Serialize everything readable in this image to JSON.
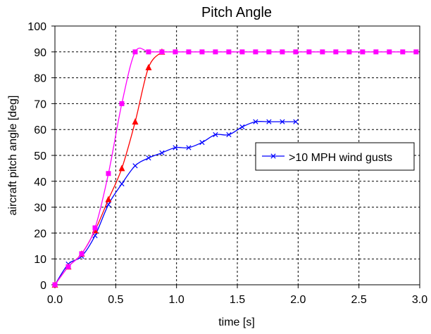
{
  "chart_data": {
    "type": "line",
    "title": "Pitch Angle",
    "xlabel": "time [s]",
    "ylabel": "aircraft pitch angle [deg]",
    "xlim": [
      0,
      3
    ],
    "ylim": [
      0,
      100
    ],
    "x_ticks": [
      "0.0",
      "0.5",
      "1.0",
      "1.5",
      "2.0",
      "2.5",
      "3.0"
    ],
    "x_tick_values": [
      0,
      0.5,
      1,
      1.5,
      2,
      2.5,
      3
    ],
    "y_ticks": [
      "0",
      "10",
      "20",
      "30",
      "40",
      "50",
      "60",
      "70",
      "80",
      "90",
      "100"
    ],
    "y_tick_values": [
      0,
      10,
      20,
      30,
      40,
      50,
      60,
      70,
      80,
      90,
      100
    ],
    "grid": true,
    "legend_position": "right, middle",
    "series": [
      {
        "color": "#ff00ff",
        "marker": "square",
        "x": [
          0,
          0.11,
          0.22,
          0.33,
          0.44,
          0.55,
          0.66,
          0.77,
          0.88,
          0.99,
          1.1,
          1.21,
          1.32,
          1.43,
          1.54,
          1.65,
          1.76,
          1.87,
          1.98,
          2.09,
          2.2,
          2.31,
          2.42,
          2.53,
          2.64,
          2.75,
          2.86,
          2.97
        ],
        "y": [
          0,
          7,
          12,
          22,
          43,
          70,
          90,
          90,
          90,
          90,
          90,
          90,
          90,
          90,
          90,
          90,
          90,
          90,
          90,
          90,
          90,
          90,
          90,
          90,
          90,
          90,
          90,
          90
        ]
      },
      {
        "color": "#ff0000",
        "marker": "triangle",
        "x": [
          0,
          0.11,
          0.22,
          0.33,
          0.44,
          0.55,
          0.66,
          0.77,
          0.88
        ],
        "y": [
          0,
          7,
          12,
          21,
          33,
          45,
          63,
          84,
          90
        ]
      },
      {
        "name": ">10 MPH wind gusts",
        "color": "#0000ff",
        "marker": "x",
        "x": [
          0,
          0.11,
          0.22,
          0.33,
          0.44,
          0.55,
          0.66,
          0.77,
          0.88,
          0.99,
          1.1,
          1.21,
          1.32,
          1.43,
          1.54,
          1.65,
          1.76,
          1.87,
          1.98
        ],
        "y": [
          0,
          8,
          11,
          19,
          31,
          39,
          46,
          49,
          51,
          53,
          53,
          55,
          58,
          58,
          61,
          63,
          63,
          63,
          63
        ]
      }
    ]
  }
}
